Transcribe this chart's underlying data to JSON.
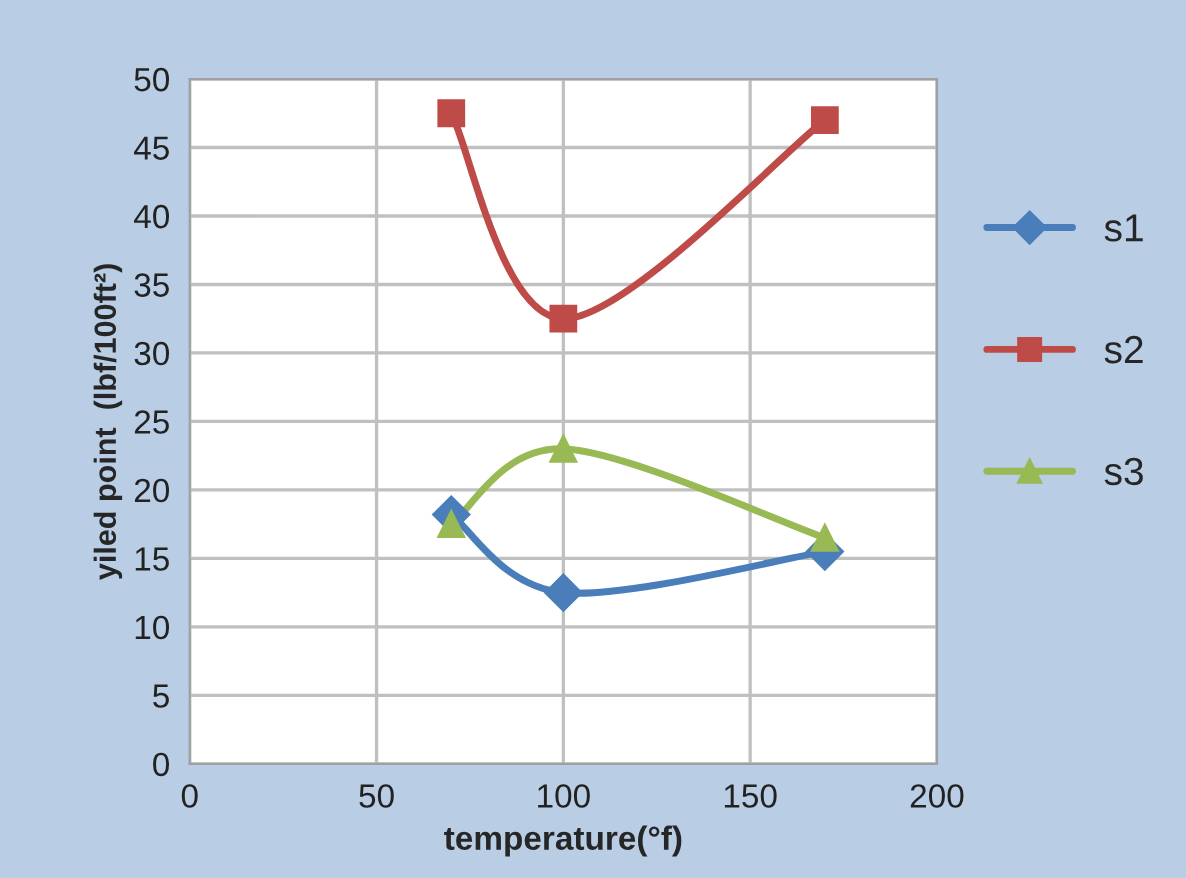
{
  "chart_data": {
    "type": "line",
    "xlabel": "temperature(°f)",
    "ylabel": "yiled point  (lbf/100ft²)",
    "x": [
      70,
      100,
      170
    ],
    "series": [
      {
        "name": "s1",
        "color": "#4a7ebb",
        "marker": "diamond",
        "values": [
          18.2,
          12.5,
          15.5
        ]
      },
      {
        "name": "s2",
        "color": "#be4b48",
        "marker": "square",
        "values": [
          47.5,
          32.5,
          47
        ]
      },
      {
        "name": "s3",
        "color": "#98b954",
        "marker": "triangle",
        "values": [
          17.5,
          23,
          16.5
        ]
      }
    ],
    "xlim": [
      0,
      200
    ],
    "xticks": [
      0,
      50,
      100,
      150,
      200
    ],
    "ylim": [
      0,
      50
    ],
    "yticks": [
      0,
      5,
      10,
      15,
      20,
      25,
      30,
      35,
      40,
      45,
      50
    ],
    "grid": true,
    "legend": "right"
  }
}
